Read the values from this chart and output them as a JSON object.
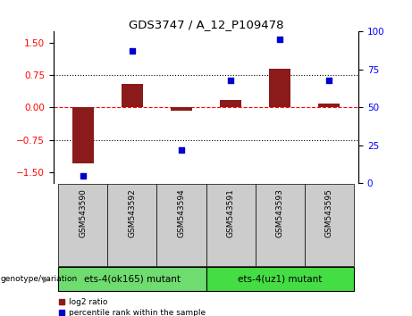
{
  "title": "GDS3747 / A_12_P109478",
  "samples": [
    "GSM543590",
    "GSM543592",
    "GSM543594",
    "GSM543591",
    "GSM543593",
    "GSM543595"
  ],
  "log2_ratio": [
    -1.3,
    0.55,
    -0.08,
    0.18,
    0.9,
    0.08
  ],
  "percentile_rank": [
    5,
    87,
    22,
    68,
    95,
    68
  ],
  "groups": [
    {
      "label": "ets-4(ok165) mutant",
      "samples": [
        0,
        1,
        2
      ],
      "color": "#6edc6e"
    },
    {
      "label": "ets-4(uz1) mutant",
      "samples": [
        3,
        4,
        5
      ],
      "color": "#44dd44"
    }
  ],
  "bar_color": "#8b1a1a",
  "dot_color": "#0000cc",
  "ylim_left": [
    -1.75,
    1.75
  ],
  "ylim_right": [
    0,
    100
  ],
  "yticks_left": [
    -1.5,
    -0.75,
    0,
    0.75,
    1.5
  ],
  "yticks_right": [
    0,
    25,
    50,
    75,
    100
  ],
  "hlines": [
    -0.75,
    0,
    0.75
  ],
  "hline_styles": [
    "dotted",
    "dashed",
    "dotted"
  ],
  "hline_colors": [
    "black",
    "red",
    "black"
  ],
  "bg_color": "#ffffff",
  "sample_bg_color": "#cccccc",
  "group_label_x": "genotype/variation",
  "bar_width": 0.45
}
